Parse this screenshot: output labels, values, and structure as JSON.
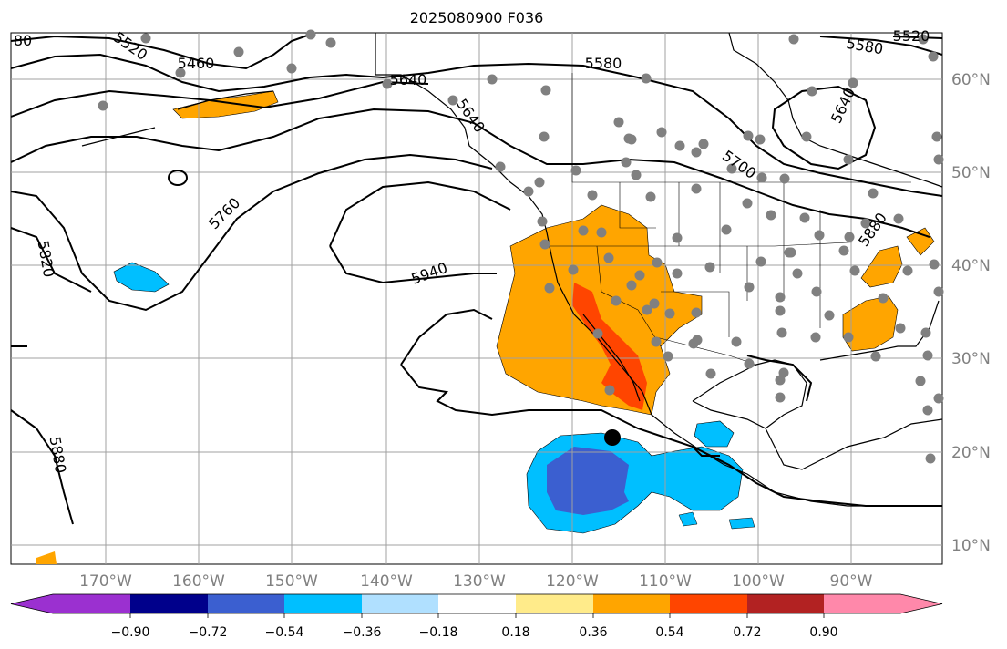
{
  "map": {
    "title": "2025080900 F036",
    "lon_labels": [
      "170°W",
      "160°W",
      "150°W",
      "140°W",
      "130°W",
      "120°W",
      "110°W",
      "100°W",
      "90°W"
    ],
    "lat_labels": [
      "60°N",
      "50°N",
      "40°N",
      "30°N",
      "20°N",
      "10°N"
    ],
    "contour_labels": [
      "5460",
      "5520",
      "5580",
      "5640",
      "5640",
      "5580",
      "5640",
      "5700",
      "5760",
      "5820",
      "5880",
      "5940",
      "5880",
      "80",
      "5520"
    ],
    "colors": {
      "contour": "#000000",
      "grid": "#a0a0a0",
      "coast": "#000000",
      "station_dots": "#808080",
      "marker": "#000000"
    }
  },
  "colorbar": {
    "colors": [
      "#9b30d0",
      "#00008b",
      "#3b5fd0",
      "#00bfff",
      "#b0e0ff",
      "#ffffff",
      "#ffeb8a",
      "#ffa500",
      "#ff4500",
      "#b22222",
      "#ff88aa"
    ],
    "ticks": [
      "−0.90",
      "−0.72",
      "−0.54",
      "−0.36",
      "−0.18",
      "0.18",
      "0.36",
      "0.54",
      "0.72",
      "0.90"
    ]
  }
}
